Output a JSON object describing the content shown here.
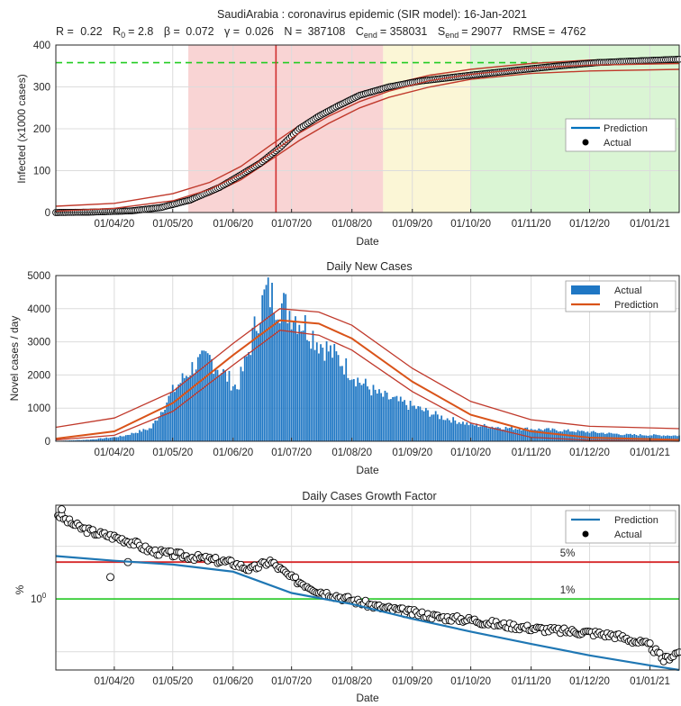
{
  "chart_data": [
    {
      "type": "line",
      "title_parts": {
        "line1": "SaudiArabia : coronavirus epidemic (SIR model): 16-Jan-2021",
        "r_label": "R =",
        "r_value": "0.22",
        "r0_label": "R",
        "r0_sub": "0",
        "r0_value": "= 2.8",
        "beta_label": "β =",
        "beta_value": "0.072",
        "gamma_label": "γ =",
        "gamma_value": "0.026",
        "n_label": "N =",
        "n_value": "387108",
        "cend_label": "C",
        "cend_sub": "end",
        "cend_value": "= 358031",
        "send_label": "S",
        "send_sub": "end",
        "send_value": "= 29077",
        "rmse_label": "RMSE =",
        "rmse_value": "4762"
      },
      "xlabel": "Date",
      "ylabel": "Infected (x1000 cases)",
      "xlim": [
        "2020-03-02",
        "2021-01-16"
      ],
      "ylim": [
        0,
        400
      ],
      "y_ticks": [
        "0",
        "100",
        "200",
        "300",
        "400"
      ],
      "x_ticks": [
        "01/04/20",
        "01/05/20",
        "01/06/20",
        "01/07/20",
        "01/08/20",
        "01/09/20",
        "01/10/20",
        "01/11/20",
        "01/12/20",
        "01/01/21"
      ],
      "x_tick_dates": [
        "2020-04-01",
        "2020-05-01",
        "2020-06-01",
        "2020-07-01",
        "2020-08-01",
        "2020-09-01",
        "2020-10-01",
        "2020-11-01",
        "2020-12-01",
        "2021-01-01"
      ],
      "grid": true,
      "legend": "right",
      "shaded_phases": [
        {
          "start": "2020-05-09",
          "end": "2020-08-17",
          "color": "#f9d4d4"
        },
        {
          "start": "2020-08-17",
          "end": "2020-10-01",
          "color": "#fbf6d6"
        },
        {
          "start": "2020-10-01",
          "end": "2021-01-16",
          "color": "#daf5d4"
        }
      ],
      "peak_line_date": "2020-06-23",
      "c_end_level": 358,
      "series": [
        {
          "name": "Actual",
          "x": [
            "2020-03-02",
            "2020-03-20",
            "2020-04-10",
            "2020-04-25",
            "2020-05-10",
            "2020-05-25",
            "2020-06-05",
            "2020-06-15",
            "2020-06-25",
            "2020-07-05",
            "2020-07-15",
            "2020-07-25",
            "2020-08-05",
            "2020-08-20",
            "2020-09-05",
            "2020-09-20",
            "2020-10-05",
            "2020-10-25",
            "2020-11-15",
            "2020-12-05",
            "2020-12-25",
            "2021-01-16"
          ],
          "y": [
            0,
            1,
            4,
            12,
            30,
            60,
            90,
            118,
            155,
            200,
            230,
            255,
            280,
            300,
            314,
            322,
            330,
            340,
            350,
            358,
            362,
            366
          ]
        },
        {
          "name": "Prediction",
          "x": [
            "2020-03-02",
            "2020-04-01",
            "2020-05-01",
            "2020-05-20",
            "2020-06-05",
            "2020-06-20",
            "2020-07-05",
            "2020-07-20",
            "2020-08-05",
            "2020-08-20",
            "2020-09-10",
            "2020-10-01",
            "2020-11-01",
            "2020-12-01",
            "2021-01-16"
          ],
          "y": [
            3,
            10,
            28,
            55,
            92,
            140,
            190,
            230,
            265,
            290,
            315,
            330,
            345,
            352,
            356
          ]
        },
        {
          "name": "Upper bound",
          "x": [
            "2020-03-02",
            "2020-04-01",
            "2020-05-01",
            "2020-05-20",
            "2020-06-05",
            "2020-06-20",
            "2020-07-05",
            "2020-07-20",
            "2020-08-05",
            "2020-08-20",
            "2020-09-10",
            "2020-10-01",
            "2020-11-01",
            "2020-12-01",
            "2021-01-16"
          ],
          "y": [
            15,
            22,
            45,
            72,
            110,
            160,
            208,
            248,
            283,
            305,
            328,
            342,
            356,
            364,
            368
          ]
        },
        {
          "name": "Lower bound",
          "x": [
            "2020-03-02",
            "2020-04-01",
            "2020-05-01",
            "2020-05-20",
            "2020-06-05",
            "2020-06-20",
            "2020-07-05",
            "2020-07-20",
            "2020-08-05",
            "2020-08-20",
            "2020-09-10",
            "2020-10-01",
            "2020-11-01",
            "2020-12-01",
            "2021-01-16"
          ],
          "y": [
            0,
            4,
            18,
            42,
            78,
            125,
            172,
            213,
            250,
            275,
            300,
            318,
            332,
            338,
            342
          ]
        }
      ],
      "legend_entries": [
        "Prediction",
        "Actual"
      ],
      "colors": {
        "actual": "#000000",
        "prediction": "#0072bd",
        "band": "#c0392b",
        "peak": "#d03030",
        "c_end": "#22cc22"
      }
    },
    {
      "type": "bar",
      "title": "Daily New Cases",
      "xlabel": "Date",
      "ylabel": "Novel cases / day",
      "xlim": [
        "2020-03-02",
        "2021-01-16"
      ],
      "ylim": [
        0,
        5000
      ],
      "y_ticks": [
        "0",
        "1000",
        "2000",
        "3000",
        "4000",
        "5000"
      ],
      "x_ticks": [
        "01/04/20",
        "01/05/20",
        "01/06/20",
        "01/07/20",
        "01/08/20",
        "01/09/20",
        "01/10/20",
        "01/11/20",
        "01/12/20",
        "01/01/21"
      ],
      "grid": true,
      "legend": "top-right",
      "legend_entries": [
        "Actual",
        "Prediction"
      ],
      "actual_envelope": {
        "x": [
          "2020-03-02",
          "2020-03-20",
          "2020-04-05",
          "2020-04-20",
          "2020-05-01",
          "2020-05-12",
          "2020-05-20",
          "2020-05-28",
          "2020-06-03",
          "2020-06-08",
          "2020-06-14",
          "2020-06-18",
          "2020-06-24",
          "2020-07-01",
          "2020-07-08",
          "2020-07-15",
          "2020-07-25",
          "2020-08-05",
          "2020-08-15",
          "2020-09-01",
          "2020-09-15",
          "2020-10-01",
          "2020-10-20",
          "2020-11-10",
          "2020-12-01",
          "2020-12-20",
          "2021-01-16"
        ],
        "y": [
          10,
          50,
          150,
          400,
          1500,
          2300,
          2500,
          2000,
          1600,
          2500,
          3800,
          4500,
          4200,
          3900,
          3500,
          3000,
          2500,
          1800,
          1400,
          1050,
          750,
          500,
          400,
          350,
          280,
          200,
          170
        ]
      },
      "series": [
        {
          "name": "Prediction",
          "x": [
            "2020-03-02",
            "2020-04-01",
            "2020-05-01",
            "2020-06-01",
            "2020-06-25",
            "2020-07-15",
            "2020-08-01",
            "2020-09-01",
            "2020-10-01",
            "2020-11-01",
            "2020-12-01",
            "2021-01-16"
          ],
          "y": [
            80,
            300,
            1150,
            2600,
            3650,
            3550,
            3100,
            1800,
            800,
            300,
            110,
            40
          ]
        },
        {
          "name": "Upper bound",
          "x": [
            "2020-03-02",
            "2020-04-01",
            "2020-05-01",
            "2020-06-01",
            "2020-06-25",
            "2020-07-15",
            "2020-08-01",
            "2020-09-01",
            "2020-10-01",
            "2020-11-01",
            "2020-12-01",
            "2021-01-16"
          ],
          "y": [
            420,
            700,
            1500,
            2950,
            4000,
            3900,
            3500,
            2200,
            1200,
            650,
            450,
            380
          ]
        },
        {
          "name": "Lower bound",
          "x": [
            "2020-03-02",
            "2020-04-01",
            "2020-05-01",
            "2020-06-01",
            "2020-06-25",
            "2020-07-15",
            "2020-08-01",
            "2020-09-01",
            "2020-10-01",
            "2020-11-01",
            "2020-12-01",
            "2021-01-16"
          ],
          "y": [
            40,
            180,
            900,
            2300,
            3350,
            3200,
            2750,
            1500,
            550,
            120,
            30,
            0
          ]
        }
      ],
      "colors": {
        "actual": "#1f77c4",
        "prediction": "#d95319",
        "band": "#c0392b"
      }
    },
    {
      "type": "line",
      "title": "Daily Cases Growth Factor",
      "xlabel": "Date",
      "ylabel": "%",
      "y_scale": "log",
      "y_tick_label": "10",
      "y_tick_exponent": "0",
      "xlim": [
        "2020-03-02",
        "2021-01-16"
      ],
      "x_ticks": [
        "01/04/20",
        "01/05/20",
        "01/06/20",
        "01/07/20",
        "01/08/20",
        "01/09/20",
        "01/10/20",
        "01/11/20",
        "01/12/20",
        "01/01/21"
      ],
      "grid": true,
      "legend": "top-right",
      "legend_entries": [
        "Prediction",
        "Actual"
      ],
      "thresholds": [
        {
          "label": "5%",
          "value": 5,
          "color": "#d62728"
        },
        {
          "label": "1%",
          "value": 1,
          "color": "#33cc33"
        }
      ],
      "series": [
        {
          "name": "Actual",
          "x": [
            "2020-03-03",
            "2020-03-08",
            "2020-03-15",
            "2020-03-22",
            "2020-04-01",
            "2020-04-10",
            "2020-04-20",
            "2020-05-01",
            "2020-05-15",
            "2020-06-01",
            "2020-06-10",
            "2020-06-20",
            "2020-07-01",
            "2020-07-15",
            "2020-08-01",
            "2020-08-15",
            "2020-09-01",
            "2020-09-15",
            "2020-10-01",
            "2020-10-15",
            "2020-11-01",
            "2020-11-15",
            "2020-12-01",
            "2020-12-15",
            "2021-01-01",
            "2021-01-08",
            "2021-01-16"
          ],
          "y": [
            40,
            30,
            22,
            18,
            15,
            12,
            8,
            7,
            6,
            4.8,
            3.6,
            5.2,
            2.5,
            1.4,
            0.95,
            0.7,
            0.55,
            0.45,
            0.4,
            0.33,
            0.28,
            0.25,
            0.23,
            0.2,
            0.13,
            0.07,
            0.1
          ]
        },
        {
          "name": "Prediction",
          "x": [
            "2020-03-02",
            "2020-04-01",
            "2020-05-01",
            "2020-06-01",
            "2020-07-01",
            "2020-08-01",
            "2020-09-01",
            "2020-10-01",
            "2020-11-01",
            "2020-12-01",
            "2021-01-01",
            "2021-01-16"
          ],
          "y": [
            6.5,
            5.3,
            4.5,
            3.3,
            1.3,
            0.8,
            0.42,
            0.24,
            0.14,
            0.085,
            0.055,
            0.045
          ]
        }
      ],
      "outliers": {
        "x": [
          "2020-03-05",
          "2020-03-30",
          "2020-04-08"
        ],
        "y": [
          50,
          2.6,
          5.0
        ]
      },
      "ylim": [
        0.045,
        60
      ],
      "colors": {
        "actual": "#000000",
        "prediction": "#1f77b4"
      }
    }
  ]
}
